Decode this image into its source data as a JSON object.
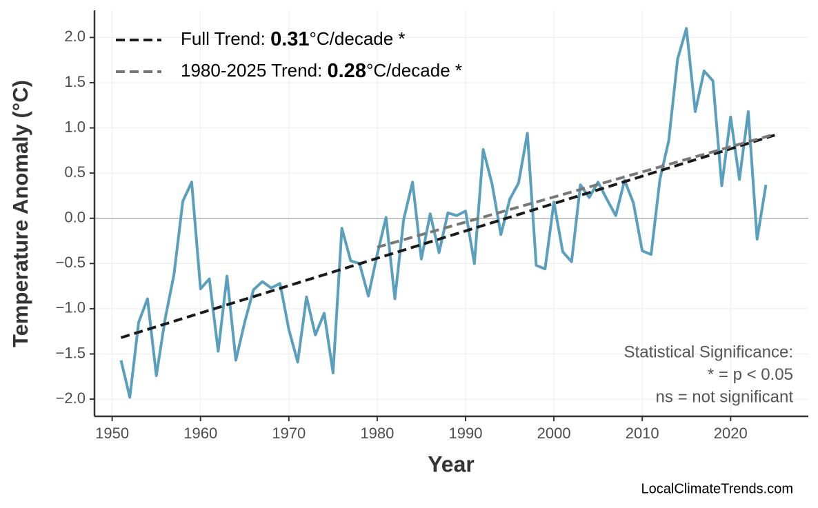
{
  "chart_data": {
    "type": "line",
    "xlabel": "Year",
    "ylabel": "Temperature Anomaly (°C)",
    "x": [
      1951,
      1952,
      1953,
      1954,
      1955,
      1956,
      1957,
      1958,
      1959,
      1960,
      1961,
      1962,
      1963,
      1964,
      1965,
      1966,
      1967,
      1968,
      1969,
      1970,
      1971,
      1972,
      1973,
      1974,
      1975,
      1976,
      1977,
      1978,
      1979,
      1980,
      1981,
      1982,
      1983,
      1984,
      1985,
      1986,
      1987,
      1988,
      1989,
      1990,
      1991,
      1992,
      1993,
      1994,
      1995,
      1996,
      1997,
      1998,
      1999,
      2000,
      2001,
      2002,
      2003,
      2004,
      2005,
      2006,
      2007,
      2008,
      2009,
      2010,
      2011,
      2012,
      2013,
      2014,
      2015,
      2016,
      2017,
      2018,
      2019,
      2020,
      2021,
      2022,
      2023,
      2024
    ],
    "series": [
      {
        "color": "#5a9fbd",
        "values": [
          -1.57,
          -1.98,
          -1.15,
          -0.89,
          -1.74,
          -1.11,
          -0.62,
          0.19,
          0.4,
          -0.78,
          -0.67,
          -1.47,
          -0.64,
          -1.57,
          -1.15,
          -0.79,
          -0.7,
          -0.77,
          -0.72,
          -1.23,
          -1.59,
          -0.87,
          -1.29,
          -1.05,
          -1.71,
          -0.11,
          -0.47,
          -0.5,
          -0.86,
          -0.4,
          0.01,
          -0.89,
          -0.01,
          0.4,
          -0.45,
          0.05,
          -0.38,
          0.06,
          0.03,
          0.08,
          -0.5,
          0.76,
          0.38,
          -0.18,
          0.21,
          0.39,
          0.94,
          -0.52,
          -0.56,
          0.18,
          -0.37,
          -0.48,
          0.37,
          0.23,
          0.4,
          0.21,
          0.03,
          0.42,
          0.17,
          -0.36,
          -0.4,
          0.43,
          0.86,
          1.76,
          2.1,
          1.18,
          1.63,
          1.52,
          0.36,
          1.12,
          0.43,
          1.18,
          -0.23,
          0.37
        ]
      }
    ],
    "trend_lines": [
      {
        "name_parts": [
          "Full Trend: ",
          "0.31",
          "°C/decade *"
        ],
        "color": "#1a1a1a",
        "x": [
          1951,
          2025
        ],
        "values": [
          -1.32,
          0.92
        ]
      },
      {
        "name_parts": [
          "1980-2025 Trend: ",
          "0.28",
          "°C/decade *"
        ],
        "color": "#777777",
        "x": [
          1980,
          2025
        ],
        "values": [
          -0.32,
          0.93
        ]
      }
    ],
    "xlim": [
      1948,
      2028.8
    ],
    "xticks": [
      1950,
      1960,
      1970,
      1980,
      1990,
      2000,
      2010,
      2020
    ],
    "ylim": [
      -2.19,
      2.3
    ],
    "yticks": [
      {
        "value": -2.0,
        "label": "−2.0"
      },
      {
        "value": -1.5,
        "label": "−1.5"
      },
      {
        "value": -1.0,
        "label": "−1.0"
      },
      {
        "value": -0.5,
        "label": "−0.5"
      },
      {
        "value": 0,
        "label": "0.0"
      },
      0.5,
      {
        "value": 1.0,
        "label": "1.0"
      },
      1.5,
      {
        "value": 2.0,
        "label": "2.0"
      }
    ],
    "grid": true,
    "annotation": [
      "Statistical Significance:",
      "* = p < 0.05",
      "ns = not significant"
    ],
    "source": "LocalClimateTrends.com"
  }
}
